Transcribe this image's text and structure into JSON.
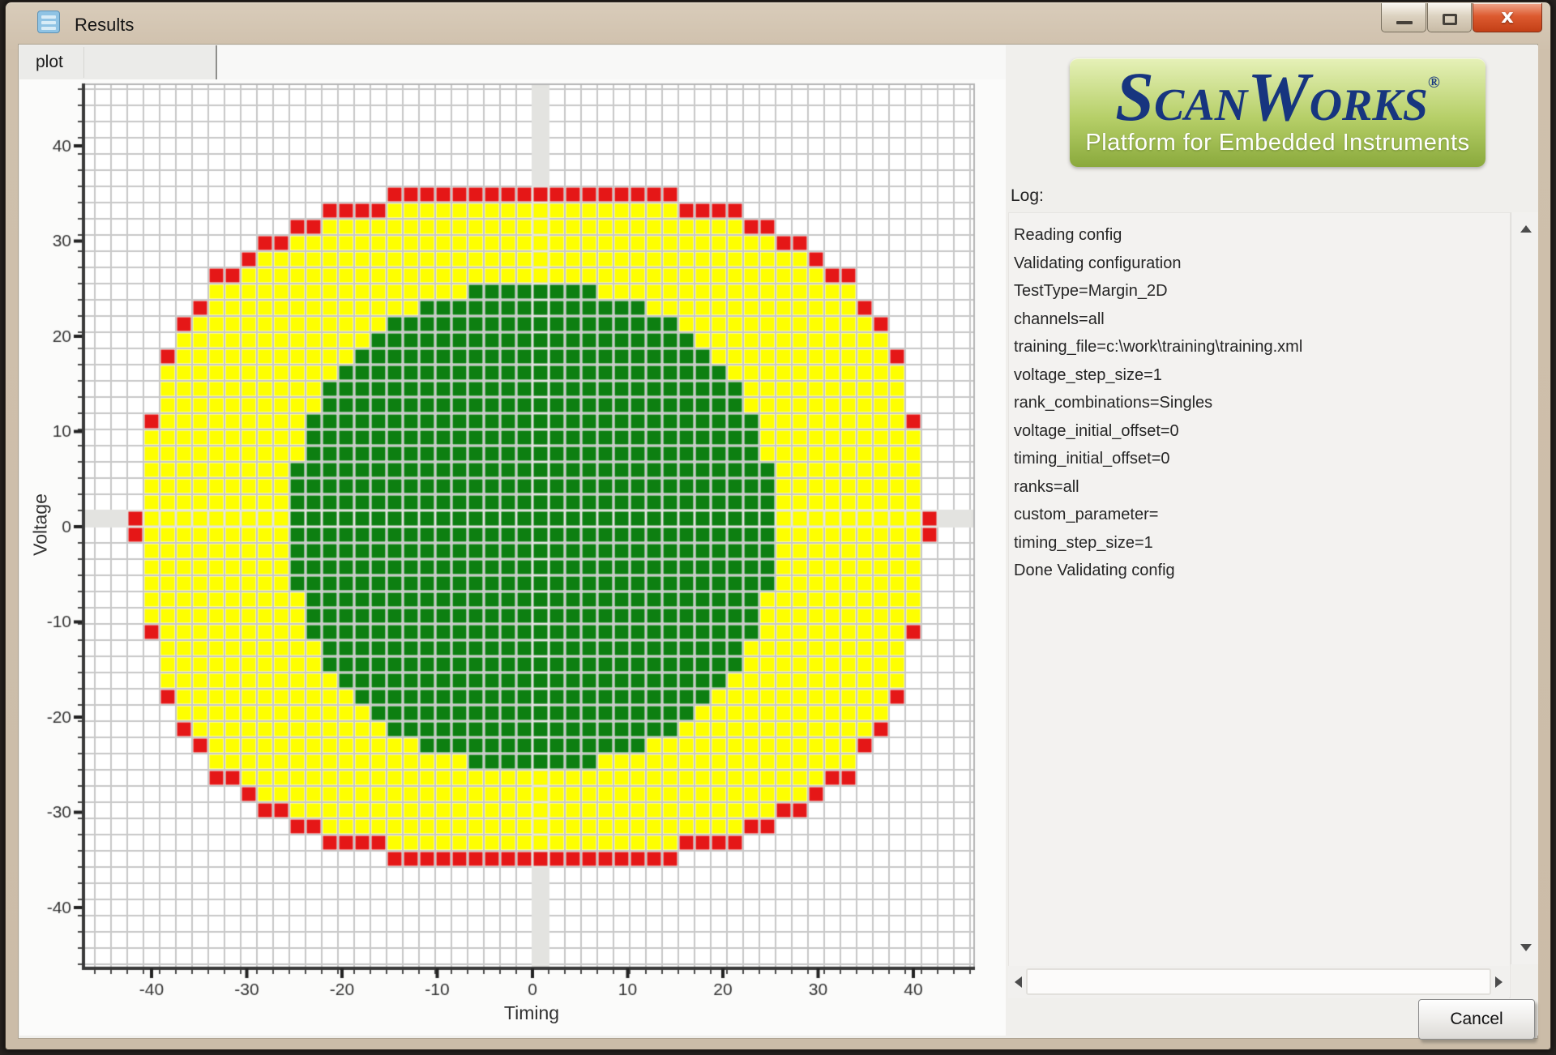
{
  "window": {
    "title": "Results"
  },
  "titlebar_controls": {
    "minimize": "minimize",
    "maximize": "maximize",
    "close": "x"
  },
  "tab": {
    "label": "plot"
  },
  "logo": {
    "brand_parts": [
      "S",
      "CAN",
      "W",
      "ORKS"
    ],
    "registered": "®",
    "tagline": "Platform for Embedded Instruments",
    "background_colors": [
      "#e6f1b8",
      "#8aa93c"
    ],
    "brand_color": "#17357f"
  },
  "log": {
    "label": "Log:",
    "lines": [
      "Reading config",
      "Validating configuration",
      "TestType=Margin_2D",
      "channels=all",
      "training_file=c:\\work\\training\\training.xml",
      "voltage_step_size=1",
      "rank_combinations=Singles",
      "voltage_initial_offset=0",
      "timing_initial_offset=0",
      "ranks=all",
      "custom_parameter=",
      "timing_step_size=1",
      "Done Validating config"
    ]
  },
  "cancel_label": "Cancel",
  "chart_data": {
    "type": "heatmap",
    "xlabel": "Timing",
    "ylabel": "Voltage",
    "x_ticks": [
      -40,
      -30,
      -20,
      -10,
      0,
      10,
      20,
      30,
      40
    ],
    "y_ticks": [
      40,
      30,
      20,
      10,
      0,
      -10,
      -20,
      -30,
      -40
    ],
    "x_range": [
      -47,
      46.5
    ],
    "y_range": [
      -46.4,
      46.6
    ],
    "grid": true,
    "colors": {
      "pass": "#0d7f11",
      "marginal": "#feff00",
      "fail": "#e51717",
      "gridline": "#c8c8c8",
      "axis": "#3a3a3a",
      "zero_band": "#e3e3e0"
    },
    "regions": {
      "pass": {
        "shape": "superellipse",
        "half_width_cells": 14.8,
        "half_height_cells": 14.9,
        "exponent": 2.2
      },
      "marginal": {
        "shape": "superellipse",
        "half_width_cells": 23.8,
        "half_height_cells": 20.1,
        "exponent": 2.7
      },
      "fail_boundary_rule": "first failing cell above and below each passing column, and beside the two center rows"
    }
  }
}
